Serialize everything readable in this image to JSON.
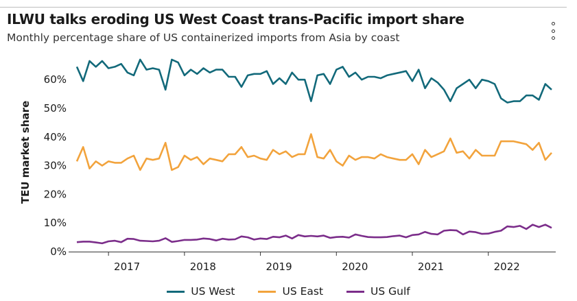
{
  "header": {
    "title": "ILWU talks eroding US West Coast trans-Pacific import share",
    "subtitle": "Monthly percentage share of US containerized imports from Asia by coast"
  },
  "menu": {
    "icon": "kebab-menu-icon"
  },
  "chart_data": {
    "type": "line",
    "title": "ILWU talks eroding US West Coast trans-Pacific import share",
    "subtitle": "Monthly percentage share of US containerized imports from Asia by coast",
    "xlabel": "",
    "ylabel": "TEU market share",
    "ylim": [
      0,
      70
    ],
    "y_ticks": [
      0,
      10,
      20,
      30,
      40,
      50,
      60
    ],
    "y_tick_labels": [
      "0%",
      "10%",
      "20%",
      "30%",
      "40%",
      "50%",
      "60%"
    ],
    "x_ticks": [
      "2017",
      "2018",
      "2019",
      "2020",
      "2021",
      "2022"
    ],
    "x_start": "2016-08",
    "x_end": "2022-11",
    "frequency": "monthly",
    "grid": false,
    "legend_position": "bottom",
    "series": [
      {
        "name": "US West",
        "color": "#12697a",
        "values": [
          64.5,
          59.5,
          66.5,
          64.5,
          66.5,
          64,
          64.5,
          65.5,
          62.5,
          61.5,
          67,
          63.5,
          64,
          63.5,
          56.5,
          67,
          66,
          61.5,
          63.5,
          62,
          64,
          62.5,
          63.5,
          63.5,
          61,
          61,
          57.5,
          61.5,
          62,
          62,
          63,
          58.5,
          60.5,
          58.5,
          62.5,
          60,
          60,
          52.5,
          61.5,
          62,
          58.5,
          63.5,
          64.5,
          61,
          62.5,
          60,
          61,
          61,
          60.5,
          61.5,
          62,
          62.5,
          63,
          59.5,
          63.5,
          57,
          60.5,
          59,
          56.5,
          52.5,
          57,
          58.5,
          60,
          57,
          60,
          59.5,
          58.5,
          53.5,
          52,
          52.5,
          52.5,
          54.5,
          54.5,
          53,
          58.5,
          56.5
        ]
      },
      {
        "name": "US East",
        "color": "#f2a33c",
        "values": [
          31.5,
          36.5,
          29,
          31.5,
          30,
          31.5,
          31,
          31,
          32.5,
          33.5,
          28.5,
          32.5,
          32,
          32.5,
          38,
          28.5,
          29.5,
          33.5,
          32,
          33,
          30.5,
          32.5,
          32,
          31.5,
          34,
          34,
          36.5,
          33,
          33.5,
          32.5,
          32,
          35.5,
          34,
          35,
          33,
          34,
          34,
          41,
          33,
          32.5,
          35.5,
          31.5,
          30,
          33.5,
          32,
          33,
          33,
          32.5,
          34,
          33,
          32.5,
          32,
          32,
          34,
          30.5,
          35.5,
          33,
          34,
          35,
          39.5,
          34.5,
          35,
          32.5,
          35.5,
          33.5,
          33.5,
          33.5,
          38.5,
          38.5,
          38.5,
          38,
          37.5,
          35.5,
          38,
          32,
          34.5
        ]
      },
      {
        "name": "US Gulf",
        "color": "#7b2d8a",
        "values": [
          3.3,
          3.5,
          3.5,
          3.2,
          2.9,
          3.6,
          3.8,
          3.3,
          4.5,
          4.4,
          3.8,
          3.7,
          3.6,
          3.8,
          4.7,
          3.4,
          3.7,
          4.1,
          4.1,
          4.2,
          4.6,
          4.4,
          3.9,
          4.5,
          4.2,
          4.3,
          5.3,
          5,
          4.2,
          4.6,
          4.4,
          5.2,
          5,
          5.6,
          4.6,
          5.8,
          5.3,
          5.5,
          5.3,
          5.6,
          4.8,
          5.1,
          5.2,
          4.9,
          6,
          5.5,
          5.1,
          5,
          5,
          5.1,
          5.4,
          5.6,
          5,
          5.8,
          6,
          6.9,
          6.2,
          6,
          7.3,
          7.5,
          7.4,
          6,
          7,
          6.8,
          6.2,
          6.3,
          6.9,
          7.3,
          8.8,
          8.6,
          9,
          7.9,
          9.4,
          8.6,
          9.4,
          8.3
        ]
      }
    ]
  }
}
